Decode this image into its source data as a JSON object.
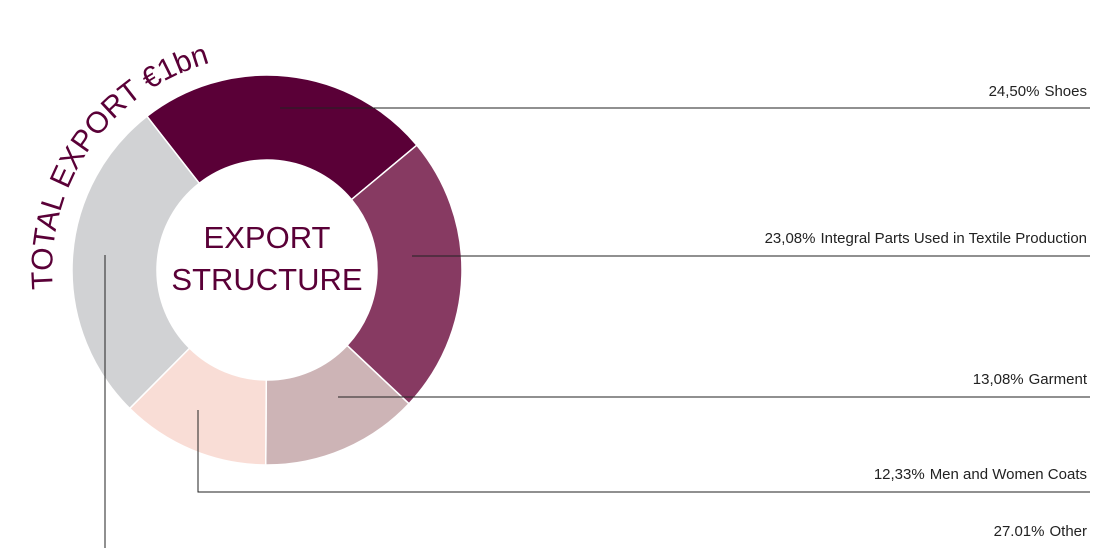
{
  "chart_data": {
    "type": "donut",
    "title": "TOTAL EXPORT €1bn",
    "center_label": [
      "EXPORT",
      "STRUCTURE"
    ],
    "categories": [
      "Shoes",
      "Integral Parts Used in Textile Production",
      "Garment",
      "Men and Women Coats",
      "Other"
    ],
    "values": [
      24.5,
      23.08,
      13.08,
      12.33,
      27.01
    ],
    "value_labels": [
      "24,50%",
      "23,08%",
      "13,08%",
      "12,33%",
      "27.01%"
    ],
    "colors": [
      "#5a0037",
      "#873a62",
      "#cdb4b6",
      "#f9ddd6",
      "#d1d2d4"
    ]
  }
}
